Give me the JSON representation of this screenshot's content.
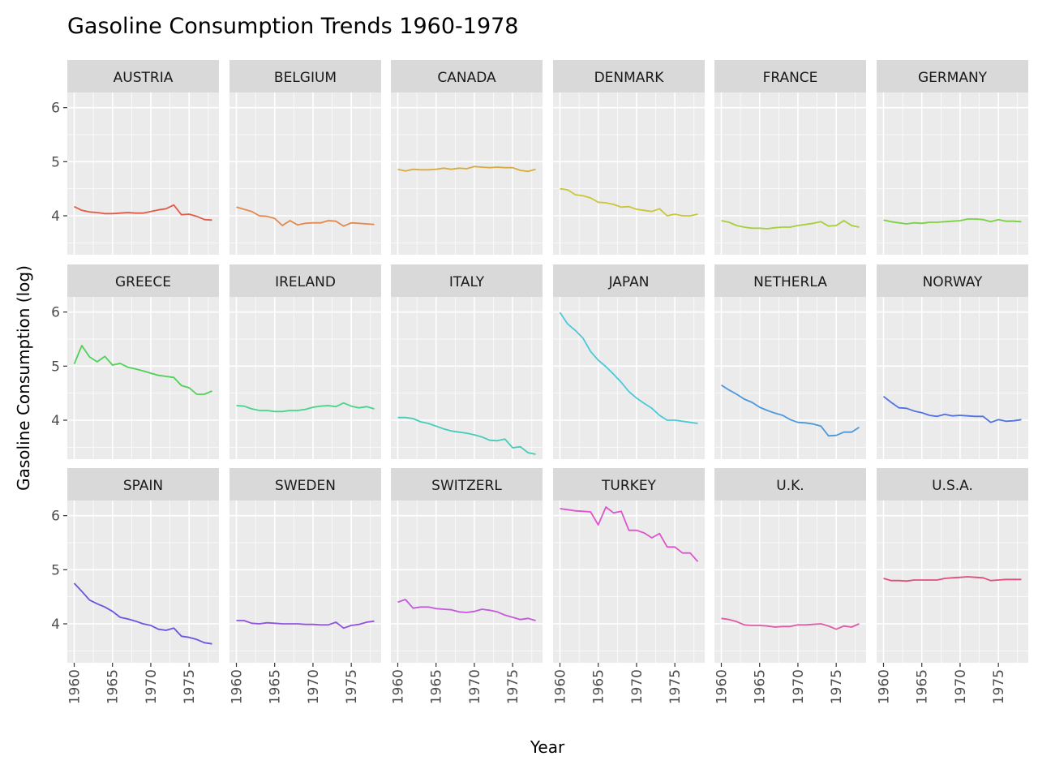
{
  "chart_data": {
    "type": "line",
    "title": "Gasoline Consumption Trends 1960-1978",
    "xlabel": "Year",
    "ylabel": "Gasoline Consumption (log)",
    "xlim": [
      1959.1,
      1978.9
    ],
    "ylim": [
      3.28,
      6.28
    ],
    "x_ticks": [
      1960,
      1965,
      1970,
      1975
    ],
    "y_ticks": [
      4,
      5,
      6
    ],
    "grid": true,
    "legend": "none",
    "x": [
      1960,
      1961,
      1962,
      1963,
      1964,
      1965,
      1966,
      1967,
      1968,
      1969,
      1970,
      1971,
      1972,
      1973,
      1974,
      1975,
      1976,
      1977,
      1978
    ],
    "series": [
      {
        "name": "AUSTRIA",
        "color": "#e05c48",
        "values": [
          4.17,
          4.1,
          4.07,
          4.06,
          4.04,
          4.04,
          4.05,
          4.06,
          4.05,
          4.05,
          4.08,
          4.11,
          4.13,
          4.2,
          4.02,
          4.03,
          3.99,
          3.93,
          3.92
        ]
      },
      {
        "name": "BELGIUM",
        "color": "#e4894e",
        "values": [
          4.16,
          4.12,
          4.08,
          4.0,
          3.99,
          3.95,
          3.82,
          3.91,
          3.83,
          3.86,
          3.87,
          3.87,
          3.91,
          3.9,
          3.81,
          3.87,
          3.86,
          3.85,
          3.84
        ]
      },
      {
        "name": "CANADA",
        "color": "#d9ac40",
        "values": [
          4.86,
          4.83,
          4.86,
          4.85,
          4.85,
          4.86,
          4.88,
          4.86,
          4.88,
          4.87,
          4.91,
          4.9,
          4.89,
          4.9,
          4.89,
          4.89,
          4.84,
          4.82,
          4.86
        ]
      },
      {
        "name": "DENMARK",
        "color": "#c9c738",
        "values": [
          4.5,
          4.48,
          4.39,
          4.37,
          4.33,
          4.25,
          4.24,
          4.21,
          4.16,
          4.17,
          4.12,
          4.1,
          4.08,
          4.13,
          4.0,
          4.03,
          4.0,
          4.0,
          4.03
        ]
      },
      {
        "name": "FRANCE",
        "color": "#a6cf3b",
        "values": [
          3.91,
          3.88,
          3.82,
          3.79,
          3.77,
          3.77,
          3.76,
          3.78,
          3.79,
          3.79,
          3.82,
          3.84,
          3.86,
          3.89,
          3.81,
          3.82,
          3.91,
          3.82,
          3.79
        ]
      },
      {
        "name": "GERMANY",
        "color": "#7bd142",
        "values": [
          3.92,
          3.89,
          3.87,
          3.85,
          3.87,
          3.86,
          3.88,
          3.88,
          3.89,
          3.9,
          3.91,
          3.94,
          3.94,
          3.93,
          3.89,
          3.93,
          3.9,
          3.9,
          3.89
        ]
      },
      {
        "name": "GREECE",
        "color": "#4fd155",
        "values": [
          5.04,
          5.38,
          5.17,
          5.08,
          5.18,
          5.02,
          5.05,
          4.98,
          4.95,
          4.91,
          4.87,
          4.83,
          4.81,
          4.79,
          4.64,
          4.6,
          4.48,
          4.48,
          4.54
        ]
      },
      {
        "name": "IRELAND",
        "color": "#46d58c",
        "values": [
          4.27,
          4.26,
          4.21,
          4.18,
          4.18,
          4.16,
          4.16,
          4.18,
          4.18,
          4.2,
          4.24,
          4.26,
          4.27,
          4.25,
          4.32,
          4.26,
          4.23,
          4.25,
          4.21
        ]
      },
      {
        "name": "ITALY",
        "color": "#45cdb8",
        "values": [
          4.05,
          4.05,
          4.03,
          3.97,
          3.94,
          3.89,
          3.84,
          3.8,
          3.78,
          3.76,
          3.73,
          3.69,
          3.63,
          3.62,
          3.65,
          3.49,
          3.51,
          3.4,
          3.37
        ]
      },
      {
        "name": "JAPAN",
        "color": "#4cc8d9",
        "values": [
          5.99,
          5.78,
          5.66,
          5.52,
          5.27,
          5.11,
          4.99,
          4.85,
          4.7,
          4.53,
          4.41,
          4.31,
          4.22,
          4.09,
          4.0,
          4.0,
          3.98,
          3.96,
          3.94
        ]
      },
      {
        "name": "NETHERLA",
        "color": "#4c98db",
        "values": [
          4.65,
          4.56,
          4.48,
          4.39,
          4.33,
          4.24,
          4.18,
          4.13,
          4.09,
          4.01,
          3.96,
          3.95,
          3.93,
          3.89,
          3.71,
          3.72,
          3.78,
          3.78,
          3.87
        ]
      },
      {
        "name": "NORWAY",
        "color": "#4f72e0",
        "values": [
          4.44,
          4.33,
          4.23,
          4.22,
          4.17,
          4.14,
          4.09,
          4.07,
          4.11,
          4.08,
          4.09,
          4.08,
          4.07,
          4.07,
          3.96,
          4.01,
          3.98,
          3.99,
          4.01
        ]
      },
      {
        "name": "SPAIN",
        "color": "#6a55de",
        "values": [
          4.75,
          4.6,
          4.44,
          4.37,
          4.31,
          4.23,
          4.12,
          4.09,
          4.05,
          4.0,
          3.97,
          3.9,
          3.88,
          3.92,
          3.77,
          3.75,
          3.71,
          3.65,
          3.63
        ]
      },
      {
        "name": "SWEDEN",
        "color": "#9152e0",
        "values": [
          4.06,
          4.06,
          4.01,
          4.0,
          4.02,
          4.01,
          4.0,
          4.0,
          4.0,
          3.99,
          3.99,
          3.98,
          3.98,
          4.03,
          3.92,
          3.97,
          3.99,
          4.03,
          4.05
        ]
      },
      {
        "name": "SWITZERL",
        "color": "#c25ad9",
        "values": [
          4.4,
          4.45,
          4.29,
          4.31,
          4.31,
          4.28,
          4.27,
          4.26,
          4.22,
          4.21,
          4.23,
          4.27,
          4.25,
          4.22,
          4.16,
          4.12,
          4.08,
          4.1,
          4.06
        ]
      },
      {
        "name": "TURKEY",
        "color": "#dd54cc",
        "values": [
          6.13,
          6.11,
          6.09,
          6.08,
          6.07,
          5.83,
          6.16,
          6.05,
          6.08,
          5.73,
          5.73,
          5.68,
          5.59,
          5.67,
          5.42,
          5.42,
          5.31,
          5.31,
          5.15
        ]
      },
      {
        "name": "U.K.",
        "color": "#e05aa8",
        "values": [
          4.1,
          4.08,
          4.04,
          3.98,
          3.97,
          3.97,
          3.96,
          3.94,
          3.95,
          3.95,
          3.98,
          3.98,
          3.99,
          4.0,
          3.96,
          3.9,
          3.96,
          3.94,
          4.0
        ]
      },
      {
        "name": "U.S.A.",
        "color": "#e05079",
        "values": [
          4.84,
          4.8,
          4.8,
          4.79,
          4.81,
          4.81,
          4.81,
          4.81,
          4.84,
          4.85,
          4.86,
          4.87,
          4.86,
          4.85,
          4.8,
          4.81,
          4.82,
          4.82,
          4.82
        ]
      }
    ]
  }
}
